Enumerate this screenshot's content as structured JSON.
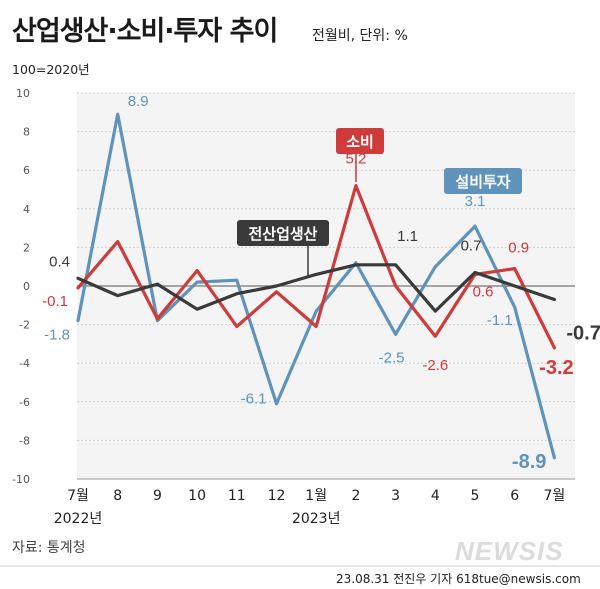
{
  "header": {
    "title": "산업생산·소비·투자 추이",
    "unit": "전월비, 단위: %",
    "base": "100=2020년"
  },
  "footer": {
    "source": "자료: 통계청",
    "credit": "23.08.31 전진우 기자 618tue@newsis.com",
    "logo": "NEWSIS"
  },
  "colors": {
    "production": "#3a3a3a",
    "consumption": "#cf3a3a",
    "investment": "#5f93ba",
    "plot_bg": "#f4f4f4",
    "grid": "#cfcfcf"
  },
  "chart_data": {
    "type": "line",
    "title": "산업생산·소비·투자 추이",
    "ylim": [
      -10,
      10
    ],
    "yticks": [
      "10",
      "8",
      "6",
      "4",
      "2",
      "0",
      "-2",
      "-4",
      "-6",
      "-8",
      "-10"
    ],
    "categories": [
      "7월",
      "8",
      "9",
      "10",
      "11",
      "12",
      "1월",
      "2",
      "3",
      "4",
      "5",
      "6",
      "7월"
    ],
    "year_labels": [
      {
        "text": "2022년",
        "index": 0
      },
      {
        "text": "2023년",
        "index": 6
      }
    ],
    "grid": true,
    "series": [
      {
        "key": "production",
        "name": "전산업생산",
        "values": [
          0.4,
          -0.5,
          0.1,
          -1.2,
          -0.4,
          0.0,
          0.6,
          1.1,
          1.1,
          -1.3,
          0.7,
          0.0,
          -0.7
        ]
      },
      {
        "key": "consumption",
        "name": "소비",
        "values": [
          -0.1,
          2.3,
          -1.7,
          0.8,
          -2.1,
          -0.3,
          -2.1,
          5.2,
          0.0,
          -2.6,
          0.6,
          0.9,
          -3.2
        ]
      },
      {
        "key": "investment",
        "name": "설비투자",
        "values": [
          -1.8,
          8.9,
          -1.8,
          0.2,
          0.3,
          -6.1,
          -1.3,
          1.2,
          -2.5,
          1.0,
          3.1,
          -1.1,
          -8.9
        ]
      }
    ],
    "data_labels": [
      {
        "series": "production",
        "index": 0,
        "text": "0.4"
      },
      {
        "series": "production",
        "index": 8,
        "text": "1.1"
      },
      {
        "series": "production",
        "index": 10,
        "text": "0.7"
      },
      {
        "series": "production",
        "index": 12,
        "text": "-0.7"
      },
      {
        "series": "consumption",
        "index": 0,
        "text": "-0.1"
      },
      {
        "series": "consumption",
        "index": 7,
        "text": "5.2"
      },
      {
        "series": "consumption",
        "index": 9,
        "text": "-2.6"
      },
      {
        "series": "consumption",
        "index": 10,
        "text": "0.6"
      },
      {
        "series": "consumption",
        "index": 11,
        "text": "0.9"
      },
      {
        "series": "consumption",
        "index": 12,
        "text": "-3.2"
      },
      {
        "series": "investment",
        "index": 0,
        "text": "-1.8"
      },
      {
        "series": "investment",
        "index": 1,
        "text": "8.9"
      },
      {
        "series": "investment",
        "index": 5,
        "text": "-6.1"
      },
      {
        "series": "investment",
        "index": 8,
        "text": "-2.5"
      },
      {
        "series": "investment",
        "index": 10,
        "text": "3.1"
      },
      {
        "series": "investment",
        "index": 11,
        "text": "-1.1"
      },
      {
        "series": "investment",
        "index": 12,
        "text": "-8.9"
      }
    ]
  }
}
